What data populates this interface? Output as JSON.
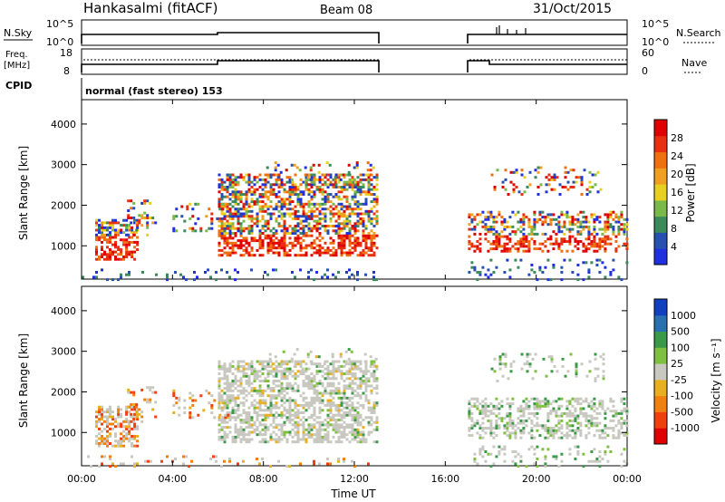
{
  "header": {
    "title": "Hankasalmi (fitACF)",
    "beam": "Beam 08",
    "date": "31/Oct/2015"
  },
  "sky_panel": {
    "left_label": "N.Sky",
    "right_label": "N.Search",
    "left_ticks": [
      "10^5",
      "10^0"
    ],
    "right_ticks": [
      "10^5",
      "10^0"
    ]
  },
  "freq_panel": {
    "left_label_line1": "Freq.",
    "left_label_line2": "[MHz]",
    "right_label": "Nave",
    "left_ticks": [
      "18",
      "8"
    ],
    "right_ticks": [
      "60",
      "0"
    ]
  },
  "cpid": {
    "label": "CPID",
    "text": "normal (fast stereo) 153"
  },
  "x_axis": {
    "title": "Time UT",
    "ticks": [
      "00:00",
      "04:00",
      "08:00",
      "12:00",
      "16:00",
      "20:00",
      "00:00"
    ]
  },
  "colors": {
    "power": [
      "#2030e0",
      "#2850b0",
      "#3a8a5a",
      "#7ab84a",
      "#e8d020",
      "#f0a020",
      "#f07010",
      "#e83010",
      "#e00000"
    ],
    "velocity": [
      "#1040c0",
      "#2870b0",
      "#3a9a4a",
      "#80c040",
      "#c8c8c0",
      "#e8b020",
      "#f08010",
      "#f04010",
      "#e00000"
    ],
    "gray": "#c8c8c0"
  },
  "chart_data": [
    {
      "type": "line",
      "panel": "sky-noise",
      "xlabel": "",
      "ylabel": "N.Sky",
      "x_range_hours": [
        0,
        24
      ],
      "series": [
        {
          "segments": [
            [
              0.6,
              13.0
            ],
            [
              17.0,
              24.0
            ]
          ],
          "level": "high"
        }
      ]
    },
    {
      "type": "line",
      "panel": "frequency",
      "xlabel": "",
      "ylabel": "Freq. [MHz]",
      "ylim": [
        8,
        18
      ],
      "x_range_hours": [
        0,
        24
      ],
      "series": [
        {
          "segments": [
            [
              0.6,
              13.0
            ],
            [
              17.0,
              24.0
            ]
          ],
          "value": 12
        }
      ]
    },
    {
      "type": "heatmap",
      "panel": "power",
      "xlabel": "Time UT",
      "ylabel": "Slant Range [km]",
      "ylim": [
        180,
        4600
      ],
      "y_ticks": [
        1000,
        2000,
        3000,
        4000
      ],
      "colorbar_label": "Power [dB]",
      "colorbar_ticks": [
        "28",
        "24",
        "20",
        "16",
        "12",
        "8",
        "4"
      ],
      "data_gap_hours": [
        13.0,
        17.0
      ]
    },
    {
      "type": "heatmap",
      "panel": "velocity",
      "xlabel": "Time UT",
      "ylabel": "Slant Range [km]",
      "ylim": [
        180,
        4600
      ],
      "y_ticks": [
        1000,
        2000,
        3000,
        4000
      ],
      "colorbar_label": "Velocity [m s⁻¹]",
      "colorbar_ticks": [
        "1000",
        "500",
        "100",
        "25",
        "-25",
        "-100",
        "-500",
        "-1000"
      ],
      "data_gap_hours": [
        13.0,
        17.0
      ]
    }
  ]
}
